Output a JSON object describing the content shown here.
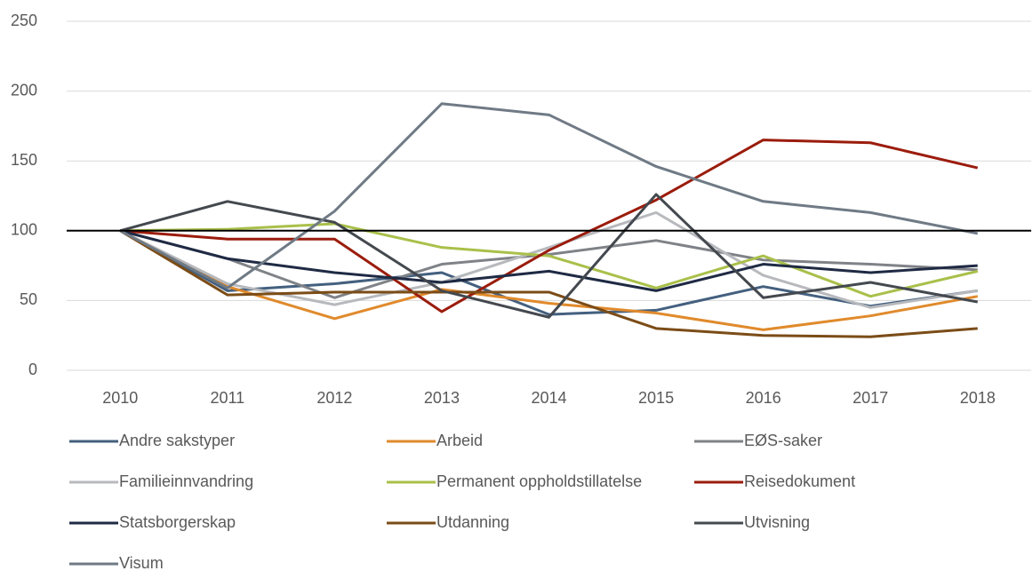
{
  "chart_data": {
    "type": "line",
    "categories": [
      "2010",
      "2011",
      "2012",
      "2013",
      "2014",
      "2015",
      "2016",
      "2017",
      "2018"
    ],
    "series": [
      {
        "name": "Andre sakstyper",
        "color": "#44607f",
        "values": [
          100,
          57,
          62,
          70,
          40,
          43,
          60,
          46,
          57
        ]
      },
      {
        "name": "Arbeid",
        "color": "#e08a2c",
        "values": [
          100,
          60,
          37,
          58,
          48,
          41,
          29,
          39,
          53
        ]
      },
      {
        "name": "EØS-saker",
        "color": "#7f8287",
        "values": [
          100,
          80,
          52,
          76,
          83,
          93,
          79,
          76,
          72
        ]
      },
      {
        "name": "Familieinnvandring",
        "color": "#b7b9bd",
        "values": [
          100,
          62,
          47,
          63,
          88,
          113,
          68,
          45,
          57
        ]
      },
      {
        "name": "Permanent oppholdstillatelse",
        "color": "#a9c04a",
        "values": [
          100,
          101,
          105,
          88,
          82,
          59,
          82,
          53,
          71
        ]
      },
      {
        "name": "Reisedokument",
        "color": "#9b1c0c",
        "values": [
          100,
          94,
          94,
          42,
          86,
          122,
          165,
          163,
          145
        ]
      },
      {
        "name": "Statsborgerskap",
        "color": "#1f2a44",
        "values": [
          100,
          80,
          70,
          63,
          71,
          57,
          76,
          70,
          75
        ]
      },
      {
        "name": "Utdanning",
        "color": "#7b4c17",
        "values": [
          100,
          54,
          56,
          56,
          56,
          30,
          25,
          24,
          30
        ]
      },
      {
        "name": "Utvisning",
        "color": "#44494f",
        "values": [
          100,
          121,
          106,
          57,
          38,
          126,
          52,
          63,
          49
        ]
      },
      {
        "name": "Visum",
        "color": "#6f7a85",
        "values": [
          100,
          59,
          114,
          191,
          183,
          146,
          121,
          113,
          98
        ]
      }
    ],
    "ylim": [
      0,
      250
    ],
    "yticks": [
      0,
      50,
      100,
      150,
      200,
      250
    ],
    "grid": true,
    "reference_line": 100,
    "legend": "bottom"
  }
}
